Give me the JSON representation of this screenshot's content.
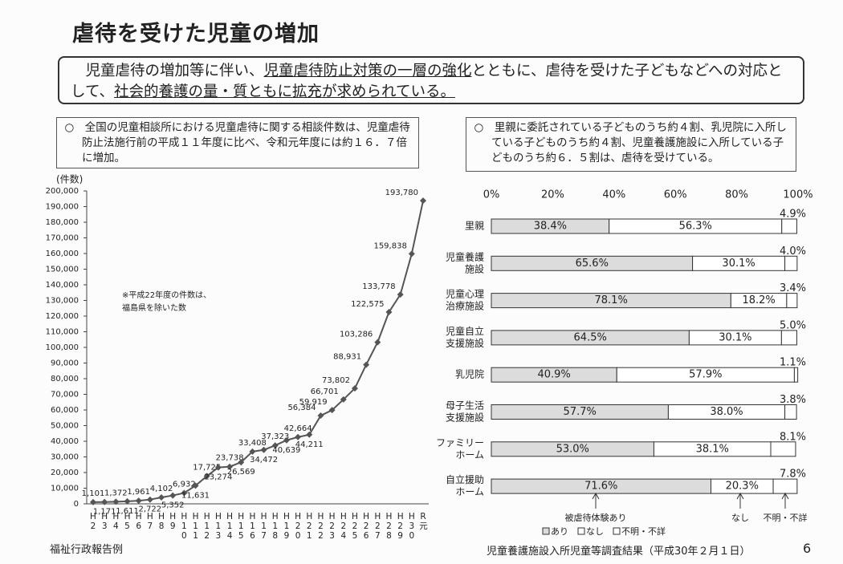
{
  "header": {
    "title": "虐待を受けた児童の増加",
    "page_number": "6"
  },
  "summary": {
    "parts": [
      "児童虐待の増加等に伴い、",
      "児童虐待防止対策の一層の強化",
      "とともに、虐待を受けた子どもなどへの対応として、",
      "社会的養護の量・質ともに拡充が求められている。"
    ]
  },
  "notes": [
    "○　全国の児童相談所における児童虐待に関する相談件数は、児童虐待防止法施行前の平成１１年度に比べ、令和元年度には約１６．７倍に増加。",
    "○　里親に委託されている子どものうち約４割、乳児院に入所している子どものうち約４割、児童養護施設に入所している子どものうち約６．５割は、虐待を受けている。"
  ],
  "sources": [
    "福祉行政報告例",
    "児童養護施設入所児童等調査結果（平成30年２月１日）"
  ],
  "chart_data": [
    {
      "type": "line",
      "y_label": "(件数)",
      "categories": [
        "H2",
        "H3",
        "H4",
        "H5",
        "H6",
        "H7",
        "H8",
        "H9",
        "H10",
        "H11",
        "H12",
        "H13",
        "H14",
        "H15",
        "H16",
        "H17",
        "H18",
        "H19",
        "H20",
        "H21",
        "H22",
        "H23",
        "H24",
        "H25",
        "H26",
        "H27",
        "H28",
        "H29",
        "H30",
        "R元"
      ],
      "values": [
        1101,
        1171,
        1372,
        1611,
        1961,
        2722,
        4102,
        5352,
        6932,
        11631,
        17725,
        23274,
        23738,
        26569,
        33408,
        34472,
        37323,
        40639,
        42664,
        44211,
        56384,
        59919,
        66701,
        73802,
        88931,
        103286,
        122575,
        133778,
        159838,
        193780
      ],
      "value_labels": [
        "1,101",
        "1,171",
        "1,372",
        "1,611",
        "1,961",
        "2,722",
        "4,102",
        "5,352",
        "6,932",
        "11,631",
        "17,725",
        "23,274",
        "23,738",
        "26,569",
        "33,408",
        "34,472",
        "37,323",
        "40,639",
        "42,664",
        "44,211",
        "56,384",
        "59,919",
        "66,701",
        "73,802",
        "88,931",
        "103,286",
        "122,575",
        "133,778",
        "159,838",
        "193,780"
      ],
      "color": "#555555",
      "ylim": [
        0,
        200000
      ],
      "yticks": [
        0,
        {
          "value": 10000,
          "label": "10,000"
        },
        {
          "value": 20000,
          "label": "20,000"
        },
        {
          "value": 30000,
          "label": "30,000"
        },
        {
          "value": 40000,
          "label": "40,000"
        },
        {
          "value": 50000,
          "label": "50,000"
        },
        {
          "value": 60000,
          "label": "60,000"
        },
        {
          "value": 70000,
          "label": "70,000"
        },
        {
          "value": 80000,
          "label": "80,000"
        },
        {
          "value": 90000,
          "label": "90,000"
        },
        {
          "value": 100000,
          "label": "100,000"
        },
        {
          "value": 110000,
          "label": "110,000"
        },
        {
          "value": 120000,
          "label": "120,000"
        },
        {
          "value": 130000,
          "label": "130,000"
        },
        {
          "value": 140000,
          "label": "140,000"
        },
        {
          "value": 150000,
          "label": "150,000"
        },
        {
          "value": 160000,
          "label": "160,000"
        },
        {
          "value": 170000,
          "label": "170,000"
        },
        {
          "value": 180000,
          "label": "180,000"
        },
        {
          "value": 190000,
          "label": "190,000"
        },
        {
          "value": 200000,
          "label": "200,000"
        }
      ],
      "annotation": [
        "※平成22年度の件数は、",
        "福島県を除いた数"
      ]
    },
    {
      "type": "stacked-bar-horizontal",
      "categories": [
        [
          "里親"
        ],
        [
          "児童養護",
          "施設"
        ],
        [
          "児童心理",
          "治療施設"
        ],
        [
          "児童自立",
          "支援施設"
        ],
        [
          "乳児院"
        ],
        [
          "母子生活",
          "支援施設"
        ],
        [
          "ファミリー",
          "ホーム"
        ],
        [
          "自立援助",
          "ホーム"
        ]
      ],
      "series": [
        {
          "name": "あり",
          "color": "#dcdcdc",
          "values": [
            38.4,
            65.6,
            78.1,
            64.5,
            40.9,
            57.7,
            53.0,
            71.6
          ],
          "value_labels": [
            "38.4%",
            "65.6%",
            "78.1%",
            "64.5%",
            "40.9%",
            "57.7%",
            "53.0%",
            "71.6%"
          ]
        },
        {
          "name": "なし",
          "color": "#ffffff",
          "values": [
            56.3,
            30.1,
            18.2,
            30.1,
            57.9,
            38.0,
            38.1,
            20.3
          ],
          "value_labels": [
            "56.3%",
            "30.1%",
            "18.2%",
            "30.1%",
            "57.9%",
            "38.0%",
            "38.1%",
            "20.3%"
          ]
        },
        {
          "name": "不明・不詳",
          "color": "#ffffff",
          "values": [
            4.9,
            4.0,
            3.4,
            5.0,
            1.1,
            3.8,
            8.1,
            7.8
          ],
          "value_labels": [
            "4.9%",
            "4.0%",
            "3.4%",
            "5.0%",
            "1.1%",
            "3.8%",
            "8.1%",
            "7.8%"
          ]
        }
      ],
      "xlim": [
        0,
        100
      ],
      "xticks": [
        {
          "value": 0,
          "label": "0%"
        },
        {
          "value": 20,
          "label": "20%"
        },
        {
          "value": 40,
          "label": "40%"
        },
        {
          "value": 60,
          "label": "60%"
        },
        {
          "value": 80,
          "label": "80%"
        },
        {
          "value": 100,
          "label": "100%"
        }
      ],
      "arrow_labels": [
        "被虐待体験あり",
        "なし",
        "不明・不詳"
      ]
    }
  ]
}
